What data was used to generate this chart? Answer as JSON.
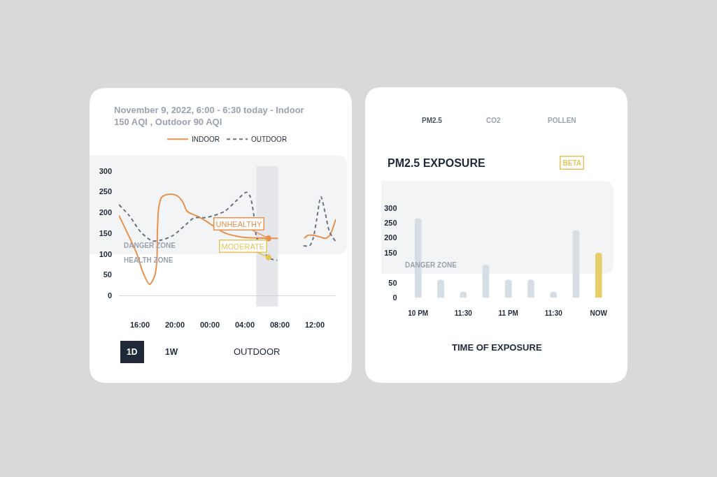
{
  "chart_data": [
    {
      "type": "line",
      "title": "November 9, 2022, 6:00 - 6:30 today - Indoor 150 AQI , Outdoor 90 AQI",
      "series": [
        {
          "name": "INDOOR",
          "color": "#e8924f",
          "x": [
            "2022-11-08T13:36",
            "2022-11-08T15:36",
            "2022-11-08T16:24",
            "2022-11-08T17:06",
            "2022-11-08T17:42",
            "2022-11-08T17:57",
            "2022-11-08T18:00",
            "2022-11-08T18:10",
            "2022-11-08T18:30",
            "2022-11-08T19:18",
            "2022-11-08T20:12",
            "2022-11-08T20:54",
            "2022-11-08T21:24",
            "2022-11-08T22:48",
            "2022-11-08T23:30",
            "2022-11-09T01:42",
            "2022-11-09T03:36",
            "2022-11-09T04:54",
            "2022-11-09T06:42",
            "2022-11-09T07:48",
            "2022-11-09T09:18",
            "2022-11-09T10:48",
            "2022-11-09T11:12",
            "2022-11-09T11:54",
            "2022-11-09T12:36",
            "2022-11-09T13:12",
            "2022-11-09T13:42",
            "2022-11-09T14:24"
          ],
          "values": [
            193,
            103,
            53,
            27,
            48,
            87,
            153,
            214,
            237,
            244,
            241,
            226,
            203,
            189,
            180,
            151,
            141,
            139,
            138,
            138,
            null,
            138,
            145,
            145,
            141,
            138,
            145,
            184
          ]
        },
        {
          "name": "OUTDOOR",
          "color": "#6b7280",
          "line_style": "dashed",
          "x": [
            "2022-11-08T13:36",
            "2022-11-08T14:48",
            "2022-11-08T16:06",
            "2022-11-08T17:24",
            "2022-11-08T18:30",
            "2022-11-08T19:48",
            "2022-11-08T21:12",
            "2022-11-08T22:12",
            "2022-11-08T23:36",
            "2022-11-09T01:42",
            "2022-11-09T03:00",
            "2022-11-09T04:12",
            "2022-11-09T04:36",
            "2022-11-09T05:00",
            "2022-11-09T05:24",
            "2022-11-09T06:42",
            "2022-11-09T07:12",
            "2022-11-09T07:42",
            "2022-11-09T09:12",
            "2022-11-09T10:42",
            "2022-11-09T11:24",
            "2022-11-09T11:48",
            "2022-11-09T12:12",
            "2022-11-09T12:42",
            "2022-11-09T13:12",
            "2022-11-09T13:42",
            "2022-11-09T14:24"
          ],
          "values": [
            219,
            192,
            153,
            132,
            134,
            145,
            170,
            187,
            188,
            203,
            228,
            249,
            239,
            198,
            137,
            92,
            87,
            85,
            null,
            120,
            120,
            137,
            181,
            238,
            198,
            153,
            130
          ]
        }
      ],
      "xlim": [
        "2022-11-08T13:36",
        "2022-11-09T14:24"
      ],
      "xticks": [
        {
          "value": "2022-11-08T16:00",
          "label": "16:00"
        },
        {
          "value": "2022-11-08T20:00",
          "label": "20:00"
        },
        {
          "value": "2022-11-09T00:00",
          "label": "00:00"
        },
        {
          "value": "2022-11-09T04:00",
          "label": "04:00"
        },
        {
          "value": "2022-11-09T08:00",
          "label": "08:00"
        },
        {
          "value": "2022-11-09T12:00",
          "label": "12:00"
        }
      ],
      "ylim": [
        0,
        337
      ],
      "yticks": [
        0,
        50,
        100,
        150,
        200,
        250,
        300
      ],
      "legend": "top",
      "bands": [
        {
          "axis": "y",
          "from": 100,
          "to": 337,
          "label": "DANGER ZONE",
          "color": "#f3f4f6"
        },
        {
          "axis": "x",
          "from": "2022-11-09T05:18",
          "to": "2022-11-09T07:48",
          "color": "#e5e7eb"
        }
      ],
      "annotations": [
        {
          "text": "UNHEALTHY",
          "x": "2022-11-09T06:42",
          "y": 138
        },
        {
          "text": "MODERATE",
          "x": "2022-11-09T06:42",
          "y": 92
        },
        "HEALTH ZONE",
        "1D",
        "1W",
        "OUTDOOR"
      ]
    },
    {
      "type": "bar",
      "title": "PM2.5 EXPOSURE",
      "xlabel": "TIME OF EXPOSURE",
      "categories": [
        "10 PM",
        null,
        "11:30",
        null,
        "11 PM",
        null,
        "11:30",
        null,
        "NOW"
      ],
      "values": [
        265,
        60,
        20,
        110,
        60,
        60,
        20,
        225,
        150
      ],
      "colors": [
        "#d6dee4",
        "#d6dee4",
        "#d6dee4",
        "#d6dee4",
        "#d6dee4",
        "#d6dee4",
        "#d6dee4",
        "#d6dee4",
        "#e6cf68"
      ],
      "ylim": [
        -10,
        390
      ],
      "yticks": [
        0,
        50,
        150,
        200,
        250,
        300
      ],
      "bands": [
        {
          "axis": "y",
          "from": 80,
          "to": 390,
          "label": "DANGER ZONE",
          "color": "#f3f4f6"
        }
      ],
      "annotations": [
        "PM2.5",
        "CO2",
        "POLLEN",
        "BETA"
      ]
    }
  ]
}
